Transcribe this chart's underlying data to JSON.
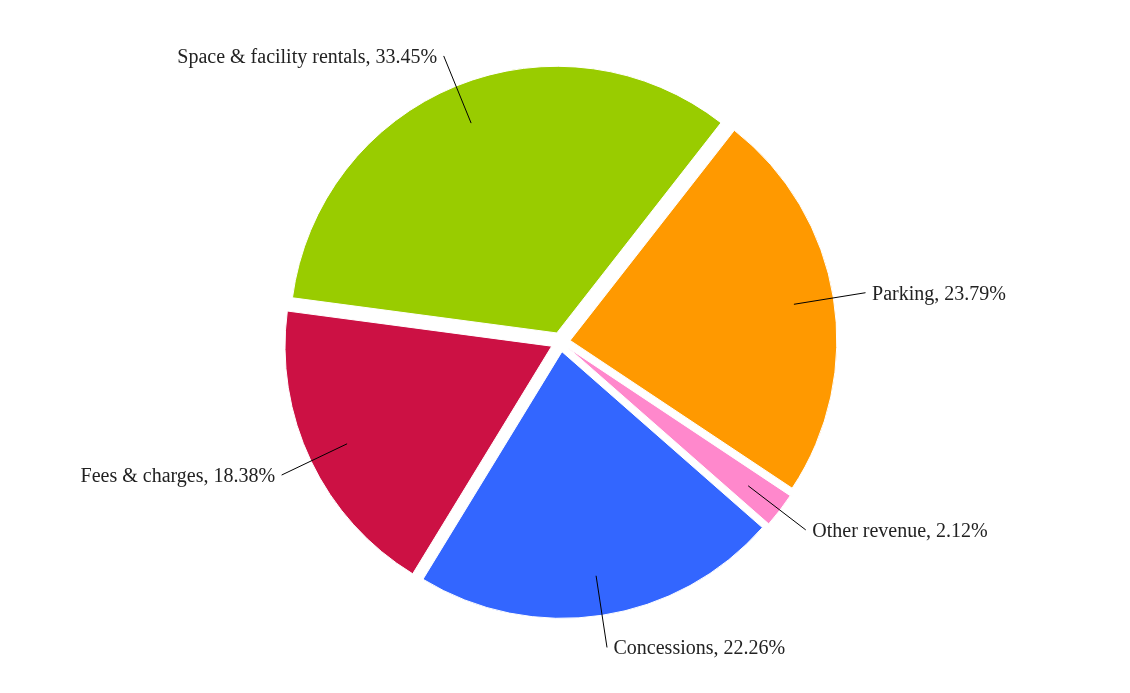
{
  "chart_data": {
    "type": "pie",
    "categories": [
      "Parking",
      "Other revenue",
      "Concessions",
      "Fees & charges",
      "Space & facility rentals"
    ],
    "values": [
      23.79,
      2.12,
      22.26,
      18.38,
      33.45
    ],
    "value_labels": [
      "23.79%",
      "2.12%",
      "22.26%",
      "18.38%",
      "33.45%"
    ],
    "colors": [
      "#ff9900",
      "#ff88cc",
      "#3366ff",
      "#cc1144",
      "#99cc00"
    ]
  }
}
